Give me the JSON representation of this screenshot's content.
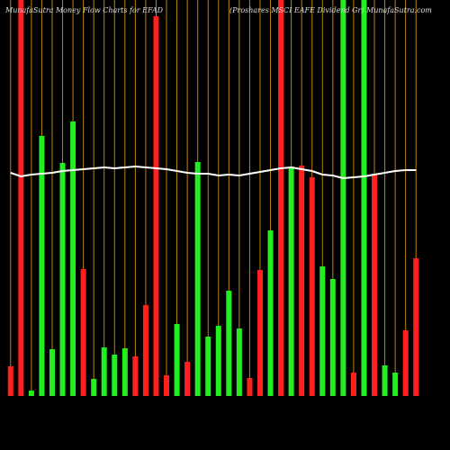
{
  "chart_data": {
    "type": "bar",
    "title": "MunafaSutra  Money Flow  Charts for EFAD",
    "subtitle": "(Proshares MSCI EAFE Dividend Gr) MunafaSutra.com",
    "ylim": [
      0,
      440
    ],
    "bars": {
      "values": [
        33,
        440,
        6,
        289,
        52,
        259,
        305,
        141,
        19,
        54,
        46,
        53,
        44,
        101,
        422,
        23,
        80,
        38,
        260,
        66,
        78,
        117,
        75,
        20,
        140,
        184,
        440,
        255,
        256,
        243,
        144,
        130,
        440,
        26,
        440,
        247,
        34,
        26,
        73,
        153
      ],
      "colors": [
        "#ff2020",
        "#ff2020",
        "#22ee22",
        "#22ee22",
        "#22ee22",
        "#22ee22",
        "#22ee22",
        "#ff2020",
        "#22ee22",
        "#22ee22",
        "#22ee22",
        "#22ee22",
        "#ff2020",
        "#ff2020",
        "#ff2020",
        "#ff2020",
        "#22ee22",
        "#ff2020",
        "#22ee22",
        "#22ee22",
        "#22ee22",
        "#22ee22",
        "#22ee22",
        "#ff2020",
        "#ff2020",
        "#22ee22",
        "#ff2020",
        "#22ee22",
        "#ff2020",
        "#ff2020",
        "#22ee22",
        "#22ee22",
        "#22ee22",
        "#ff2020",
        "#22ee22",
        "#ff2020",
        "#22ee22",
        "#22ee22",
        "#ff2020",
        "#ff2020"
      ]
    },
    "line": {
      "color": "#ffffff",
      "values": [
        248,
        244,
        246,
        247,
        248,
        250,
        251,
        252,
        253,
        254,
        253,
        254,
        255,
        254,
        253,
        252,
        250,
        248,
        247,
        247,
        245,
        246,
        245,
        247,
        249,
        251,
        253,
        254,
        252,
        250,
        246,
        245,
        242,
        243,
        244,
        246,
        248,
        250,
        251,
        251
      ]
    },
    "gridline_color": "#b8860b"
  }
}
